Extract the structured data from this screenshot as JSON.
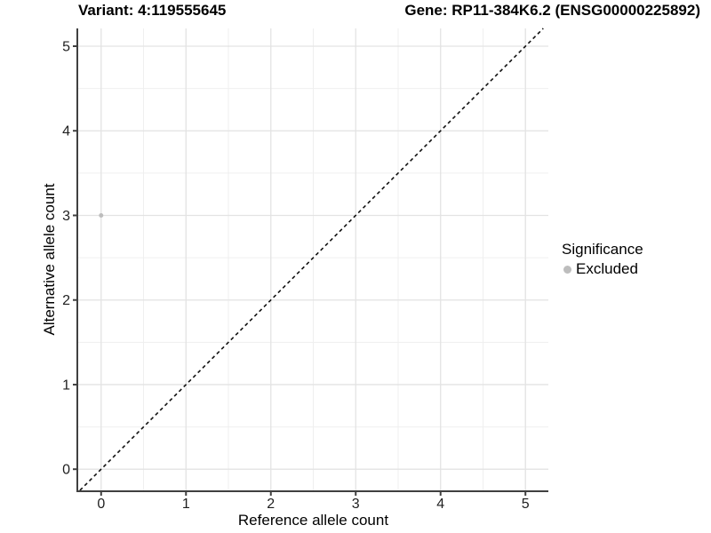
{
  "chart_data": {
    "type": "scatter",
    "title_left": "Variant: 4:119555645",
    "title_right": "Gene: RP11-384K6.2 (ENSG00000225892)",
    "xlabel": "Reference allele count",
    "ylabel": "Alternative allele count",
    "xlim": [
      -0.27,
      5.27
    ],
    "ylim": [
      -0.25,
      5.21
    ],
    "x_ticks": [
      0,
      1,
      2,
      3,
      4,
      5
    ],
    "y_ticks": [
      0,
      1,
      2,
      3,
      4,
      5
    ],
    "minor_ticks_x": [
      0.5,
      1.5,
      2.5,
      3.5,
      4.5
    ],
    "minor_ticks_y": [
      0.5,
      1.5,
      2.5,
      3.5,
      4.5
    ],
    "grid": true,
    "points": [
      {
        "x": 0,
        "y": 3,
        "significance": "Excluded"
      }
    ],
    "reference_line": {
      "slope": 1,
      "intercept": 0,
      "linetype": "dashed"
    },
    "legend": {
      "title": "Significance",
      "position": "right",
      "items": [
        {
          "label": "Excluded",
          "color": "#bdbdbd"
        }
      ]
    },
    "colors": {
      "point": "#bdbdbd",
      "grid_major": "#e3e3e3",
      "grid_minor": "#efefef",
      "axis_line": "#404040",
      "tick_label": "#1f1f1f",
      "reference_line": "#111111",
      "title": "#000000",
      "background": "#ffffff"
    }
  }
}
